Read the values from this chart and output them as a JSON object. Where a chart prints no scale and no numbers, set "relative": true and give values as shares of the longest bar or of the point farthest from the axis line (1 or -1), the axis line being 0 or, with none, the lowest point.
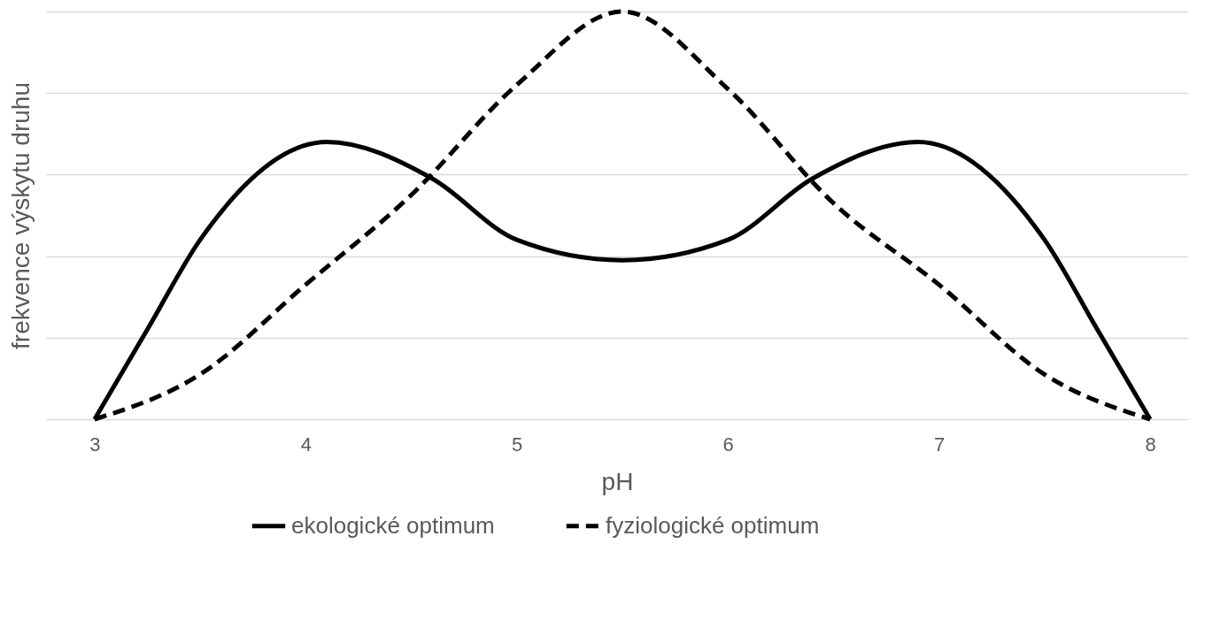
{
  "chart_data": {
    "type": "line",
    "xlabel": "pH",
    "ylabel": "frekvence výskytu druhu",
    "relative": true,
    "xlim": [
      2.77,
      8.18
    ],
    "xticks": [
      3,
      4,
      5,
      6,
      7,
      8
    ],
    "grid": "y",
    "legend": "bottom",
    "series": [
      {
        "name": "ekologické optimum",
        "color": "#000000",
        "line_style": "solid",
        "x": [
          3,
          3.25,
          3.5,
          4.1,
          4.6,
          5,
          5.5,
          6,
          6.4,
          6.9,
          7.5,
          7.75,
          8
        ],
        "values": [
          0,
          0.22,
          0.44,
          0.68,
          0.59,
          0.44,
          0.39,
          0.44,
          0.59,
          0.68,
          0.44,
          0.22,
          0
        ]
      },
      {
        "name": "fyziologické optimum",
        "color": "#000000",
        "line_style": "dashed",
        "x": [
          3,
          3.5,
          4,
          4.5,
          5,
          5.5,
          6,
          6.5,
          7,
          7.5,
          8
        ],
        "values": [
          0,
          0.11,
          0.33,
          0.55,
          0.82,
          1,
          0.81,
          0.53,
          0.33,
          0.11,
          0
        ]
      }
    ]
  }
}
